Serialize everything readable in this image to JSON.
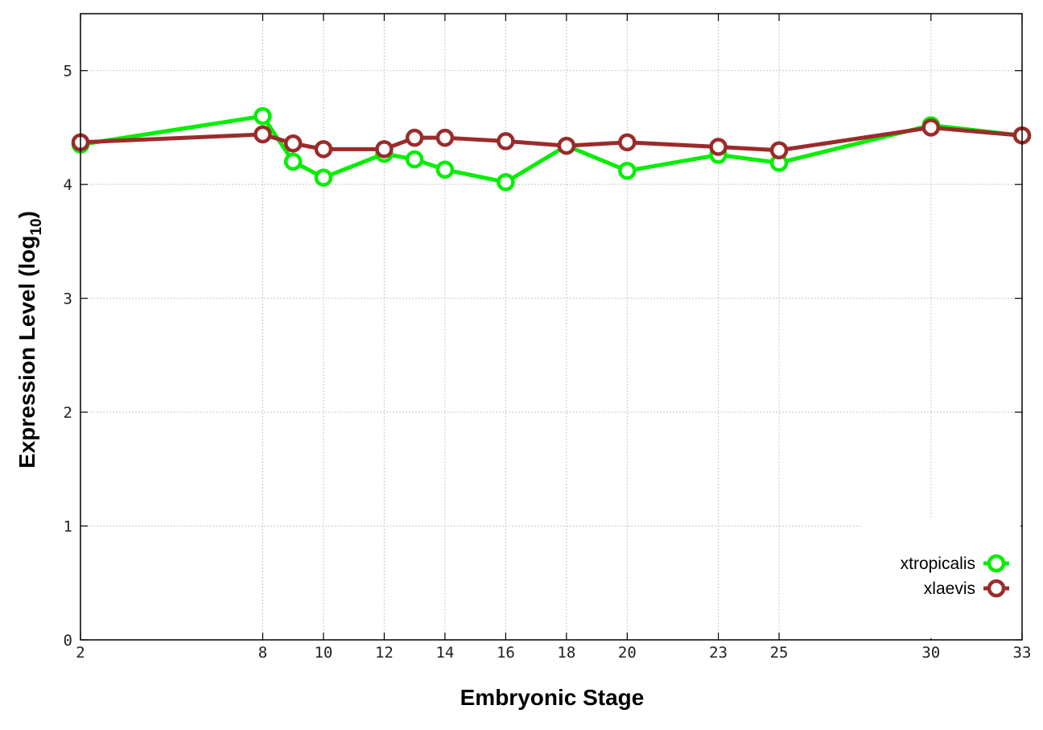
{
  "chart_data": {
    "type": "line",
    "title": "",
    "xlabel": "Embryonic Stage",
    "ylabel": "Expression Level (log10)",
    "ylabel_parts": {
      "main": "Expression Level (log",
      "sub": "10",
      "close": ")"
    },
    "x": [
      2,
      8,
      9,
      10,
      12,
      13,
      14,
      16,
      18,
      20,
      23,
      25,
      30,
      33
    ],
    "x_tick_labels": [
      "2",
      "8",
      "10",
      "12",
      "14",
      "16",
      "18",
      "20",
      "23",
      "25",
      "30",
      "33"
    ],
    "x_tick_values": [
      2,
      8,
      10,
      12,
      14,
      16,
      18,
      20,
      23,
      25,
      30,
      33
    ],
    "xlim": [
      2,
      33
    ],
    "ylim": [
      0,
      5.5
    ],
    "y_ticks": [
      0,
      1,
      2,
      3,
      4,
      5
    ],
    "y_tick_labels": [
      "0",
      "1",
      "2",
      "3",
      "4",
      "5"
    ],
    "grid": true,
    "legend_position": "bottom-right",
    "series": [
      {
        "name": "xtropicalis",
        "color": "#00ee00",
        "values": [
          4.35,
          4.6,
          4.2,
          4.06,
          4.27,
          4.22,
          4.13,
          4.02,
          4.34,
          4.12,
          4.26,
          4.19,
          4.52,
          4.43
        ]
      },
      {
        "name": "xlaevis",
        "color": "#9b2b2b",
        "values": [
          4.37,
          4.44,
          4.36,
          4.31,
          4.31,
          4.41,
          4.41,
          4.38,
          4.34,
          4.37,
          4.33,
          4.3,
          4.5,
          4.43
        ]
      }
    ]
  }
}
